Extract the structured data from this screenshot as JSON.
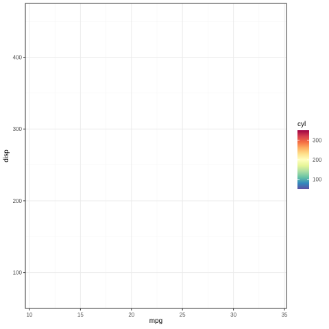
{
  "chart_data": {
    "type": "scatter",
    "title": "",
    "xlabel": "mpg",
    "ylabel": "disp",
    "xlim": [
      9.6,
      35.2
    ],
    "ylim": [
      50,
      475
    ],
    "x_ticks": [
      10,
      15,
      20,
      25,
      30,
      35
    ],
    "x_tick_labels": [
      "10",
      "15",
      "20",
      "25",
      "30",
      "35"
    ],
    "y_ticks": [
      100,
      200,
      300,
      400
    ],
    "y_tick_labels": [
      "100",
      "200",
      "300",
      "400"
    ],
    "x_minor_ticks": [
      12.5,
      17.5,
      22.5,
      27.5,
      32.5
    ],
    "y_minor_ticks": [
      50,
      150,
      250,
      350,
      450
    ],
    "grid": true,
    "points": [],
    "legend": {
      "title": "cyl",
      "placement": "right",
      "type": "colorbar",
      "palette": "Spectral",
      "range": [
        50,
        350
      ],
      "ticks": [
        100,
        200,
        300
      ],
      "tick_labels": [
        "100",
        "200",
        "300"
      ],
      "colors": [
        "#5e4fa2",
        "#3288bd",
        "#66c2a5",
        "#abdda4",
        "#e6f598",
        "#ffffbf",
        "#fee08b",
        "#fdae61",
        "#f46d43",
        "#d53e4f",
        "#9e0142"
      ]
    },
    "colors": {
      "panel_border": "#333333",
      "grid_major": "#ebebeb",
      "grid_minor": "#f5f5f5"
    }
  }
}
